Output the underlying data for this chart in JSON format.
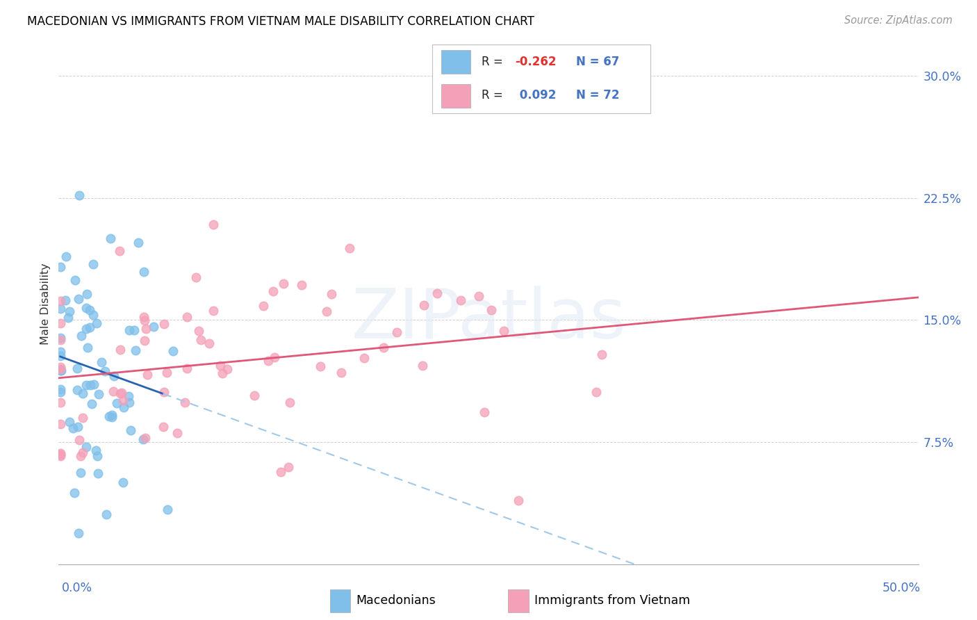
{
  "title": "MACEDONIAN VS IMMIGRANTS FROM VIETNAM MALE DISABILITY CORRELATION CHART",
  "source": "Source: ZipAtlas.com",
  "ylabel": "Male Disability",
  "y_ticks": [
    0.075,
    0.15,
    0.225,
    0.3
  ],
  "y_tick_labels": [
    "7.5%",
    "15.0%",
    "22.5%",
    "30.0%"
  ],
  "x_range": [
    0.0,
    0.5
  ],
  "y_range": [
    0.0,
    0.32
  ],
  "color_blue": "#7fbfea",
  "color_pink": "#f4a0b8",
  "mac_R": -0.262,
  "mac_N": 67,
  "viet_R": 0.092,
  "viet_N": 72,
  "legend_r1_val": "-0.262",
  "legend_n1_val": "67",
  "legend_r2_val": "0.092",
  "legend_n2_val": "72",
  "watermark_text": "ZIPatlas",
  "trend_blue_color": "#2563b0",
  "trend_blue_dash_color": "#a0c8e8",
  "trend_pink_color": "#e05878"
}
